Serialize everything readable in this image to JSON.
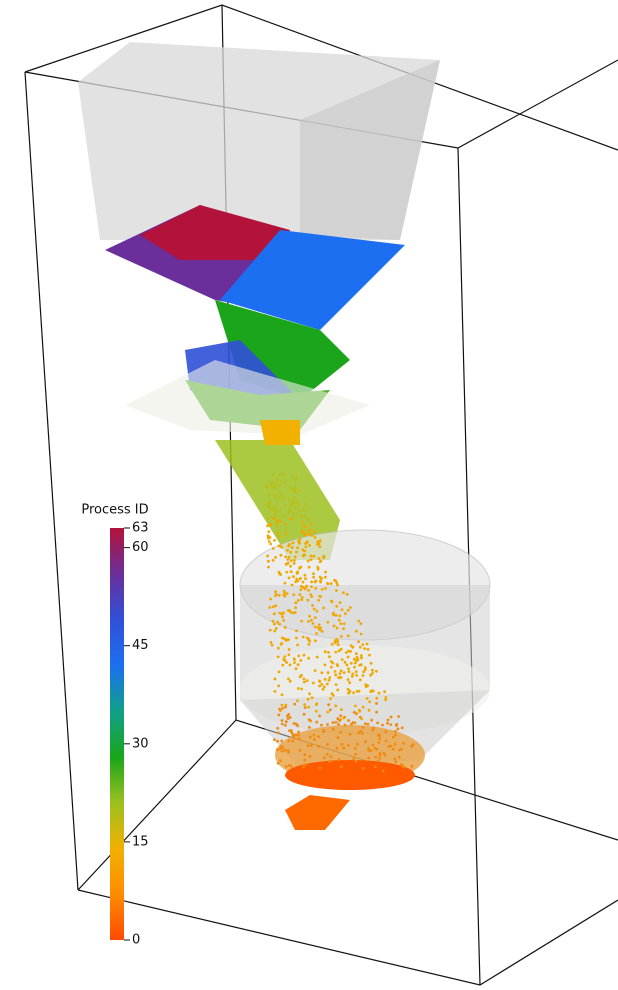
{
  "colorbar": {
    "title": "Process ID",
    "range": [
      0,
      63
    ],
    "ticks": [
      0,
      15,
      30,
      45,
      60,
      63
    ],
    "colormap": [
      "#ff4a00",
      "#ff8c00",
      "#f2b000",
      "#9cc020",
      "#1aa51a",
      "#10a08a",
      "#1c6ff0",
      "#3050d8",
      "#6a2f9a",
      "#b3123a"
    ]
  }
}
